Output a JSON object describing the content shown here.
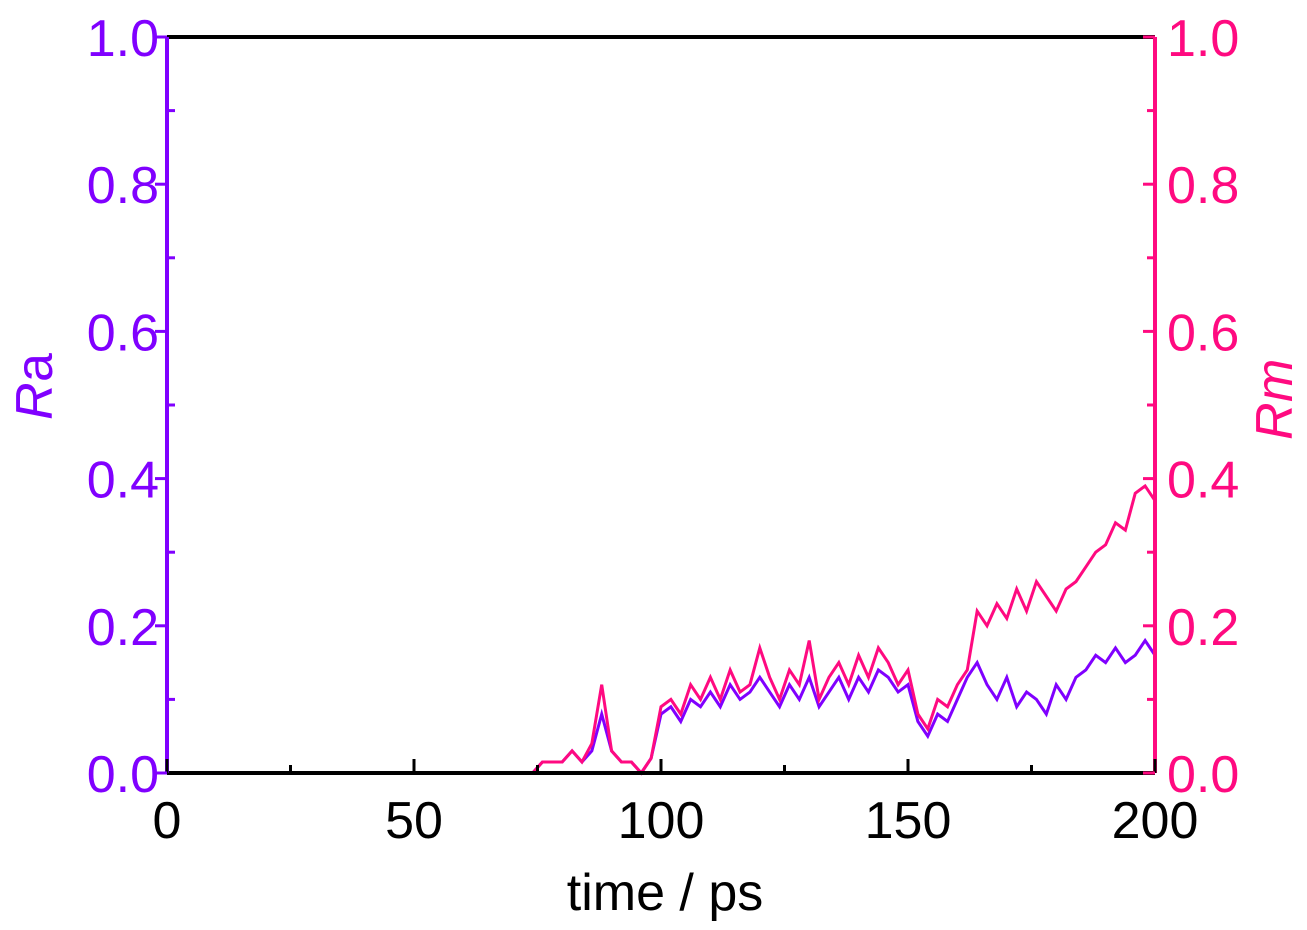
{
  "chart_data": {
    "type": "line",
    "xlabel": "time / ps",
    "ylabel": "R",
    "ylabel_sub": "a",
    "y2label": "R",
    "y2label_sub": "m",
    "xlim": [
      0,
      200
    ],
    "xticks": [
      0,
      50,
      100,
      150,
      200
    ],
    "xminorticks": [
      25,
      75,
      125,
      175
    ],
    "ylim": [
      0,
      1
    ],
    "yticks": [
      {
        "value": 0,
        "label": "0.0"
      },
      {
        "value": 0.2,
        "label": "0.2"
      },
      {
        "value": 0.4,
        "label": "0.4"
      },
      {
        "value": 0.6,
        "label": "0.6"
      },
      {
        "value": 0.8,
        "label": "0.8"
      },
      {
        "value": 1,
        "label": "1.0"
      }
    ],
    "y2lim": [
      0,
      1
    ],
    "y2ticks": [
      {
        "value": 0,
        "label": "0.0"
      },
      {
        "value": 0.2,
        "label": "0.2"
      },
      {
        "value": 0.4,
        "label": "0.4"
      },
      {
        "value": 0.6,
        "label": "0.6"
      },
      {
        "value": 0.8,
        "label": "0.8"
      },
      {
        "value": 1,
        "label": "1.0"
      }
    ],
    "yminorticks": [
      0.1,
      0.3,
      0.5,
      0.7,
      0.9
    ],
    "ycolor": "#8000ff",
    "y2color": "#ff0a80",
    "x": [
      0,
      2,
      4,
      6,
      8,
      10,
      12,
      14,
      16,
      18,
      20,
      22,
      24,
      26,
      28,
      30,
      32,
      34,
      36,
      38,
      40,
      42,
      44,
      46,
      48,
      50,
      52,
      54,
      56,
      58,
      60,
      62,
      64,
      66,
      68,
      70,
      72,
      74,
      76,
      78,
      80,
      82,
      84,
      86,
      88,
      90,
      92,
      94,
      96,
      98,
      100,
      102,
      104,
      106,
      108,
      110,
      112,
      114,
      116,
      118,
      120,
      122,
      124,
      126,
      128,
      130,
      132,
      134,
      136,
      138,
      140,
      142,
      144,
      146,
      148,
      150,
      152,
      154,
      156,
      158,
      160,
      162,
      164,
      166,
      168,
      170,
      172,
      174,
      176,
      178,
      180,
      182,
      184,
      186,
      188,
      190,
      192,
      194,
      196,
      198,
      200
    ],
    "series": [
      {
        "color": "#8000ff",
        "axis": "y",
        "values": [
          0,
          0,
          0,
          0,
          0,
          0,
          0,
          0,
          0,
          0,
          0,
          0,
          0,
          0,
          0,
          0,
          0,
          0,
          0,
          0,
          0,
          0,
          0,
          0,
          0,
          0,
          0,
          0,
          0,
          0,
          0,
          0,
          0,
          0,
          0,
          0,
          0,
          0,
          0.015,
          0.015,
          0.015,
          0.03,
          0.015,
          0.03,
          0.08,
          0.03,
          0.015,
          0.015,
          0,
          0.02,
          0.08,
          0.09,
          0.07,
          0.1,
          0.09,
          0.11,
          0.09,
          0.12,
          0.1,
          0.11,
          0.13,
          0.11,
          0.09,
          0.12,
          0.1,
          0.13,
          0.09,
          0.11,
          0.13,
          0.1,
          0.13,
          0.11,
          0.14,
          0.13,
          0.11,
          0.12,
          0.07,
          0.05,
          0.08,
          0.07,
          0.1,
          0.13,
          0.15,
          0.12,
          0.1,
          0.13,
          0.09,
          0.11,
          0.1,
          0.08,
          0.12,
          0.1,
          0.13,
          0.14,
          0.16,
          0.15,
          0.17,
          0.15,
          0.16,
          0.18,
          0.16
        ]
      },
      {
        "color": "#ff0a80",
        "axis": "y2",
        "values": [
          0,
          0,
          0,
          0,
          0,
          0,
          0,
          0,
          0,
          0,
          0,
          0,
          0,
          0,
          0,
          0,
          0,
          0,
          0,
          0,
          0,
          0,
          0,
          0,
          0,
          0,
          0,
          0,
          0,
          0,
          0,
          0,
          0,
          0,
          0,
          0,
          0,
          0,
          0.015,
          0.015,
          0.015,
          0.03,
          0.015,
          0.04,
          0.12,
          0.03,
          0.015,
          0.015,
          0,
          0.02,
          0.09,
          0.1,
          0.08,
          0.12,
          0.1,
          0.13,
          0.1,
          0.14,
          0.11,
          0.12,
          0.17,
          0.13,
          0.1,
          0.14,
          0.12,
          0.18,
          0.1,
          0.13,
          0.15,
          0.12,
          0.16,
          0.13,
          0.17,
          0.15,
          0.12,
          0.14,
          0.08,
          0.06,
          0.1,
          0.09,
          0.12,
          0.14,
          0.22,
          0.2,
          0.23,
          0.21,
          0.25,
          0.22,
          0.26,
          0.24,
          0.22,
          0.25,
          0.26,
          0.28,
          0.3,
          0.31,
          0.34,
          0.33,
          0.38,
          0.39,
          0.37
        ]
      }
    ]
  }
}
